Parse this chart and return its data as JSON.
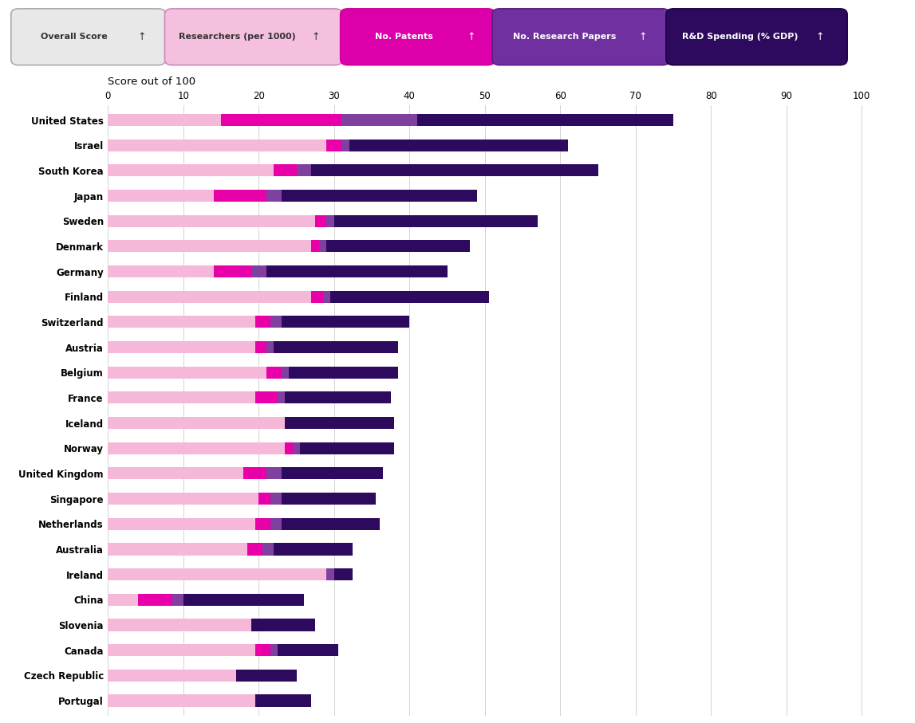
{
  "countries": [
    "United States",
    "Israel",
    "South Korea",
    "Japan",
    "Sweden",
    "Denmark",
    "Germany",
    "Finland",
    "Switzerland",
    "Austria",
    "Belgium",
    "France",
    "Iceland",
    "Norway",
    "United Kingdom",
    "Singapore",
    "Netherlands",
    "Australia",
    "Ireland",
    "China",
    "Slovenia",
    "Canada",
    "Czech Republic",
    "Portugal"
  ],
  "segments": {
    "researchers": [
      15.0,
      29.0,
      22.0,
      14.0,
      27.5,
      27.0,
      14.0,
      27.0,
      19.5,
      19.5,
      21.0,
      19.5,
      23.5,
      23.5,
      18.0,
      20.0,
      19.5,
      18.5,
      29.0,
      4.0,
      19.0,
      19.5,
      17.0,
      19.5
    ],
    "patents": [
      16.0,
      2.0,
      3.0,
      7.0,
      1.5,
      1.0,
      5.0,
      1.5,
      2.0,
      1.5,
      2.0,
      3.0,
      0.0,
      1.0,
      3.0,
      1.5,
      2.0,
      2.0,
      0.0,
      4.5,
      0.0,
      2.0,
      0.0,
      0.0
    ],
    "research_papers": [
      10.0,
      1.0,
      2.0,
      2.0,
      1.0,
      1.0,
      2.0,
      1.0,
      1.5,
      1.0,
      1.0,
      1.0,
      0.0,
      1.0,
      2.0,
      1.5,
      1.5,
      1.5,
      1.0,
      1.5,
      0.0,
      1.0,
      0.0,
      0.0
    ],
    "rd_spending": [
      34.0,
      29.0,
      38.0,
      26.0,
      27.0,
      19.0,
      24.0,
      21.0,
      17.0,
      16.5,
      14.5,
      14.0,
      14.5,
      12.5,
      13.5,
      12.5,
      13.0,
      10.5,
      2.5,
      16.0,
      8.5,
      8.0,
      8.0,
      7.5
    ]
  },
  "colors": {
    "researchers": "#f5b8d8",
    "patents": "#e800a8",
    "research_papers": "#8040a0",
    "rd_spending": "#2d0a5e"
  },
  "axis_label": "Score out of 100",
  "xticks": [
    0,
    10,
    20,
    30,
    40,
    50,
    60,
    70,
    80,
    90,
    100
  ],
  "xlim": [
    0,
    105
  ],
  "button_labels": [
    "Overall Score",
    "Researchers (per 1000)",
    "No. Patents",
    "No. Research Papers",
    "R&D Spending (% GDP)"
  ],
  "button_colors": [
    "#e8e8e8",
    "#f5c0de",
    "#dd00aa",
    "#7030a0",
    "#2d0a5e"
  ],
  "button_text_colors": [
    "#333333",
    "#333333",
    "#ffffff",
    "#ffffff",
    "#ffffff"
  ],
  "button_border_colors": [
    "#aaaaaa",
    "#cc88bb",
    "#cc0099",
    "#5c1a80",
    "#1a0040"
  ]
}
